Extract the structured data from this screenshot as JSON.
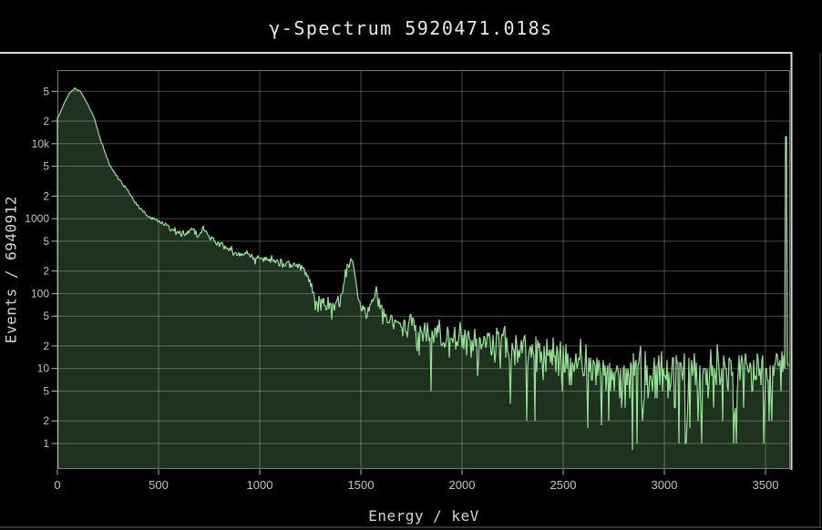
{
  "chart_data": {
    "type": "area",
    "title": "γ-Spectrum 5920471.018s",
    "xlabel": "Energy / keV",
    "ylabel": "Events / 6940912",
    "total_events": "6940912",
    "measurement_time_s": "5920471.018",
    "y_scale": "log",
    "grid": true,
    "legend": "none",
    "xlim": [
      0,
      3622
    ],
    "ylim": [
      0.46,
      96000
    ],
    "x_ticks": [
      0,
      500,
      1000,
      1500,
      2000,
      2500,
      3000,
      3500
    ],
    "y_ticks": [
      {
        "label": "5",
        "value": 50000
      },
      {
        "label": "2",
        "value": 20000
      },
      {
        "label": "10k",
        "value": 10000
      },
      {
        "label": "5",
        "value": 5000
      },
      {
        "label": "2",
        "value": 2000
      },
      {
        "label": "1000",
        "value": 1000
      },
      {
        "label": "5",
        "value": 500
      },
      {
        "label": "2",
        "value": 200
      },
      {
        "label": "100",
        "value": 100
      },
      {
        "label": "5",
        "value": 50
      },
      {
        "label": "2",
        "value": 20
      },
      {
        "label": "10",
        "value": 10
      },
      {
        "label": "5",
        "value": 5
      },
      {
        "label": "2",
        "value": 2
      },
      {
        "label": "1",
        "value": 1
      }
    ],
    "peaks": [
      {
        "keV": 1461,
        "counts": 310
      },
      {
        "keV": 1577,
        "counts": 113
      }
    ],
    "overflow_spike": {
      "keV": 3601,
      "counts": 12500
    },
    "envelope_keV_counts": [
      [
        2,
        22000
      ],
      [
        32,
        34000
      ],
      [
        59,
        47000
      ],
      [
        86,
        55000
      ],
      [
        113,
        50000
      ],
      [
        144,
        36000
      ],
      [
        180,
        23000
      ],
      [
        212,
        11500
      ],
      [
        257,
        5300
      ],
      [
        302,
        3400
      ],
      [
        347,
        2400
      ],
      [
        392,
        1500
      ],
      [
        446,
        1100
      ],
      [
        495,
        940
      ],
      [
        550,
        770
      ],
      [
        617,
        640
      ],
      [
        676,
        710
      ],
      [
        703,
        600
      ],
      [
        721,
        770
      ],
      [
        743,
        570
      ],
      [
        797,
        460
      ],
      [
        887,
        355
      ],
      [
        977,
        290
      ],
      [
        1068,
        270
      ],
      [
        1144,
        255
      ],
      [
        1203,
        240
      ],
      [
        1230,
        187
      ],
      [
        1252,
        113
      ],
      [
        1279,
        78
      ],
      [
        1315,
        72
      ],
      [
        1360,
        68
      ],
      [
        1392,
        76
      ],
      [
        1419,
        141
      ],
      [
        1437,
        233
      ],
      [
        1455,
        310
      ],
      [
        1468,
        209
      ],
      [
        1482,
        101
      ],
      [
        1504,
        61
      ],
      [
        1531,
        57
      ],
      [
        1554,
        70
      ],
      [
        1568,
        93
      ],
      [
        1577,
        113
      ],
      [
        1590,
        81
      ],
      [
        1608,
        53
      ],
      [
        1644,
        45
      ],
      [
        1698,
        38
      ],
      [
        1766,
        34
      ],
      [
        1833,
        31
      ],
      [
        1923,
        27
      ],
      [
        2013,
        24
      ],
      [
        2103,
        22
      ],
      [
        2193,
        20.5
      ],
      [
        2284,
        18.8
      ],
      [
        2374,
        16.4
      ],
      [
        2464,
        13.9
      ],
      [
        2554,
        12.1
      ],
      [
        2644,
        10.2
      ],
      [
        2779,
        9.1
      ],
      [
        2959,
        8.6
      ],
      [
        3139,
        8.3
      ],
      [
        3320,
        8.3
      ],
      [
        3500,
        8.6
      ],
      [
        3590,
        9.1
      ]
    ],
    "outliers_keV_counts": [
      [
        1846,
        5
      ],
      [
        2240,
        3.4
      ],
      [
        2419,
        25
      ],
      [
        2586,
        25
      ],
      [
        2622,
        1.6
      ],
      [
        2689,
        1.75
      ],
      [
        2842,
        0.82
      ],
      [
        3126,
        1.6
      ],
      [
        3347,
        2.45
      ]
    ],
    "noise": {
      "model": "poisson",
      "factor": 1.3,
      "seed": 1337
    },
    "series_color": "#94e294",
    "fill_color": "#1f3220"
  },
  "colors": {
    "background": "#000000",
    "grid": "rgba(255,255,255,0.28)",
    "plot_border": "#7a7a7a",
    "pane_border": "#d8d8d8",
    "tick": "#b5b5b5",
    "tick_label": "#c2c2c2",
    "title": "#e8e8e8",
    "axis_label": "#d4d4d4",
    "window_edge": "#333333"
  }
}
